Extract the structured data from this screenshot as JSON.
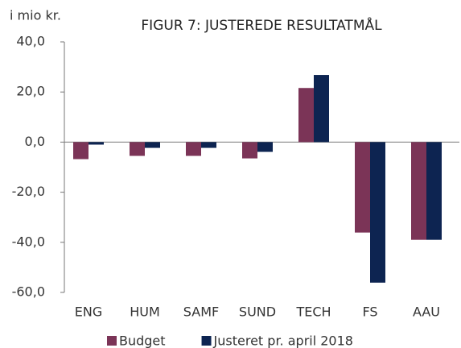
{
  "chart_data": {
    "type": "bar",
    "title": "FIGUR 7: JUSTEREDE RESULTATMÅL",
    "y_label": "i mio kr.",
    "categories": [
      "ENG",
      "HUM",
      "SAMF",
      "SUND",
      "TECH",
      "FS",
      "AAU"
    ],
    "series": [
      {
        "name": "Budget",
        "color": "#7b3457",
        "values": [
          -6.8,
          -5.5,
          -5.5,
          -6.5,
          21.6,
          -36.1,
          -39.0
        ]
      },
      {
        "name": "Justeret pr. april 2018",
        "color": "#0d2451",
        "values": [
          -1.0,
          -2.3,
          -2.3,
          -3.9,
          26.8,
          -56.1,
          -39.0
        ]
      }
    ],
    "ylim": [
      -60,
      40
    ],
    "yticks": [
      {
        "value": 40,
        "label": "40,0"
      },
      {
        "value": 20,
        "label": "20,0"
      },
      {
        "value": 0,
        "label": "0,0"
      },
      {
        "value": -20,
        "label": "-20,0"
      },
      {
        "value": -40,
        "label": "-40,0"
      },
      {
        "value": -60,
        "label": "-60,0"
      }
    ],
    "legend": "bottom"
  }
}
